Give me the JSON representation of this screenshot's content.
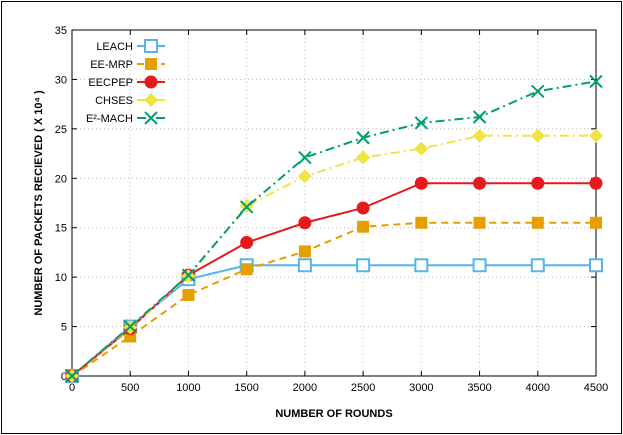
{
  "chart_data": {
    "type": "line",
    "xlabel": "NUMBER OF ROUNDS",
    "ylabel": "NUMBER OF PACKETS RECIEVED ( X 10⁴ )",
    "xlim": [
      0,
      4500
    ],
    "ylim": [
      0,
      35
    ],
    "x_ticks": [
      "0",
      "500",
      "1000",
      "1500",
      "2000",
      "2500",
      "3000",
      "3500",
      "4000",
      "4500"
    ],
    "y_ticks": [
      "0",
      "5",
      "10",
      "15",
      "20",
      "25",
      "30",
      "35"
    ],
    "grid": true,
    "legend_position": "top-left",
    "x": [
      0,
      500,
      1000,
      1500,
      2000,
      2500,
      3000,
      3500,
      4000,
      4500
    ],
    "series": [
      {
        "name": "LEACH",
        "color": "#56b4e9",
        "marker": "square-open",
        "dash": "solid",
        "values": [
          0,
          5,
          9.8,
          11.2,
          11.2,
          11.2,
          11.2,
          11.2,
          11.2,
          11.2
        ]
      },
      {
        "name": "EE-MRP",
        "color": "#e69f00",
        "marker": "square-filled",
        "dash": "dashed",
        "values": [
          0,
          4,
          8.2,
          10.8,
          12.6,
          15.1,
          15.5,
          15.5,
          15.5,
          15.5
        ]
      },
      {
        "name": "EECPEP",
        "color": "#e41a1c",
        "marker": "circle-filled",
        "dash": "solid",
        "values": [
          0,
          4.8,
          10.2,
          13.5,
          15.5,
          17,
          19.5,
          19.5,
          19.5,
          19.5
        ]
      },
      {
        "name": "CHSES",
        "color": "#f0e442",
        "marker": "diamond-filled",
        "dash": "dashdot",
        "values": [
          0,
          4.9,
          10.1,
          17.2,
          20.2,
          22.1,
          23,
          24.3,
          24.3,
          24.3
        ]
      },
      {
        "name": "E²-MACH",
        "color": "#009e73",
        "marker": "x",
        "dash": "dashdot",
        "values": [
          0,
          5,
          10.2,
          17.1,
          22.1,
          24.1,
          25.6,
          26.2,
          28.8,
          29.8
        ]
      }
    ]
  }
}
